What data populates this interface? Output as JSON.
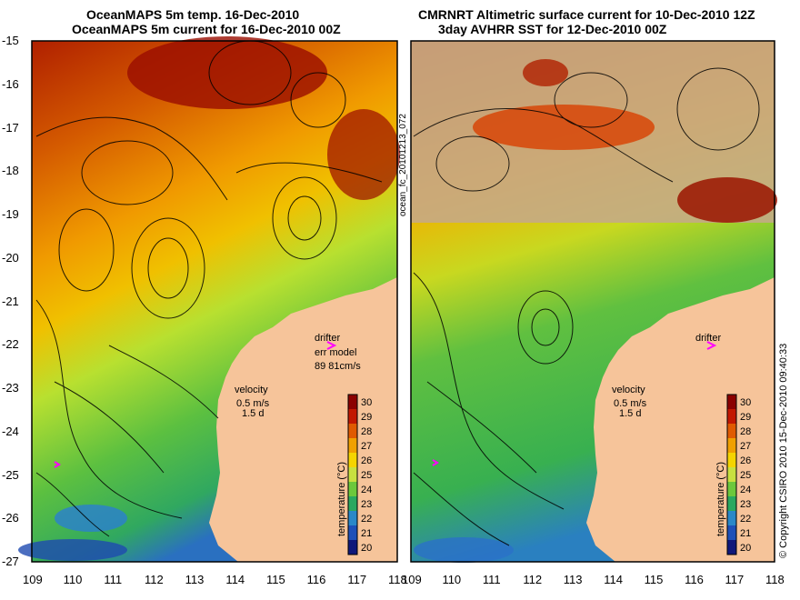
{
  "left_panel": {
    "title_line1": "OceanMAPS 5m temp. 16-Dec-2010",
    "title_line2": "OceanMAPS 5m current for 16-Dec-2010 00Z",
    "drifter_label": "drifter",
    "err_label": "err model",
    "err_values": "89 81cm/s",
    "velocity_label": "velocity",
    "velocity_scale": "0.5 m/s",
    "velocity_time": "1.5 d"
  },
  "right_panel": {
    "title_line1": "CMRNRT Altimetric surface current for 10-Dec-2010 12Z",
    "title_line2": "3day AVHRR SST for 12-Dec-2010 00Z",
    "drifter_label": "drifter",
    "velocity_label": "velocity",
    "velocity_scale": "0.5 m/s",
    "velocity_time": "1.5 d"
  },
  "side_label": "ocean_fc_20101213_072",
  "copyright": "© Copyright CSIRO 2010   15-Dec-2010 09:40:33",
  "colorbar": {
    "label": "temperature (°C)",
    "ticks": [
      "30",
      "29",
      "28",
      "27",
      "26",
      "25",
      "24",
      "23",
      "22",
      "21",
      "20"
    ],
    "colors": [
      "#8b0000",
      "#c21800",
      "#e05a00",
      "#f0a000",
      "#f5d400",
      "#c8e040",
      "#6cc83c",
      "#2aa860",
      "#2a88c8",
      "#1e50b8",
      "#10187a"
    ]
  },
  "axes": {
    "lat_ticks": [
      "-15",
      "-16",
      "-17",
      "-18",
      "-19",
      "-20",
      "-21",
      "-22",
      "-23",
      "-24",
      "-25",
      "-26",
      "-27"
    ],
    "lon_ticks_left": [
      "109",
      "110",
      "111",
      "112",
      "113",
      "114",
      "115",
      "116",
      "117",
      "118"
    ],
    "lon_ticks_right": [
      "109",
      "110",
      "111",
      "112",
      "113",
      "114",
      "115",
      "116",
      "117",
      "118"
    ]
  },
  "colors": {
    "land": "#f6c49a",
    "island": "#c4a88c",
    "coast": "#6ad0d8",
    "drifter": "#ff00ff"
  }
}
